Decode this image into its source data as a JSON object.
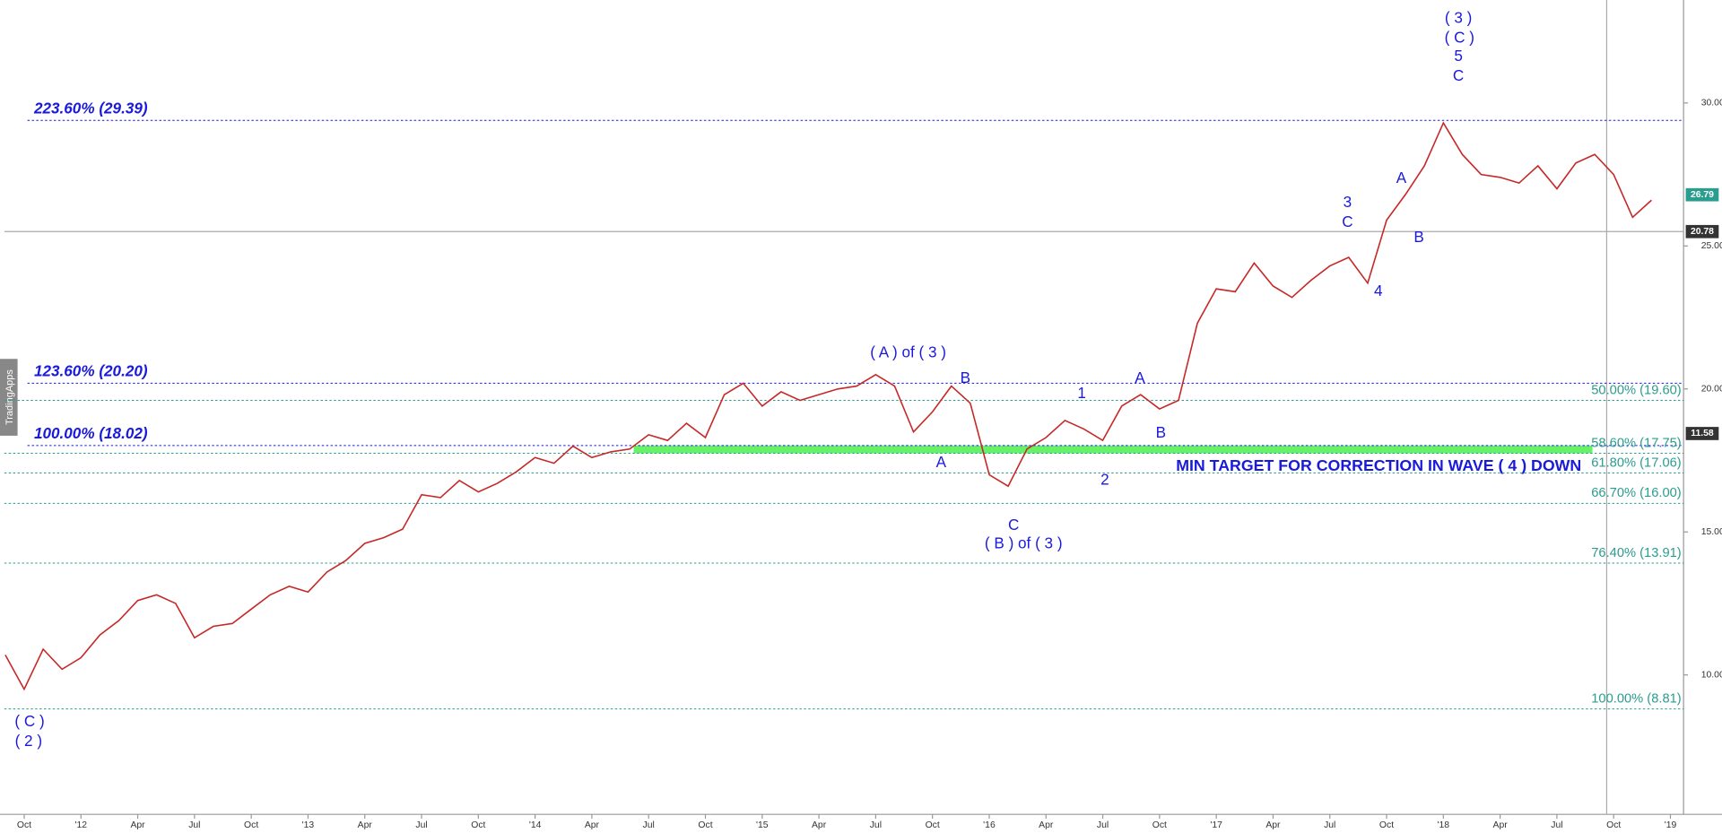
{
  "chart_data": {
    "type": "line",
    "side_tab": "TradingApps",
    "categories": [
      null,
      "Oct",
      null,
      null,
      "'12",
      null,
      null,
      "Apr",
      null,
      null,
      "Jul",
      null,
      null,
      "Oct",
      null,
      null,
      "'13",
      null,
      null,
      "Apr",
      null,
      null,
      "Jul",
      null,
      null,
      "Oct",
      null,
      null,
      "'14",
      null,
      null,
      "Apr",
      null,
      null,
      "Jul",
      null,
      null,
      "Oct",
      null,
      null,
      "'15",
      null,
      null,
      "Apr",
      null,
      null,
      "Jul",
      null,
      null,
      "Oct",
      null,
      null,
      "'16",
      null,
      null,
      "Apr",
      null,
      null,
      "Jul",
      null,
      null,
      "Oct",
      null,
      null,
      "'17",
      null,
      null,
      "Apr",
      null,
      null,
      "Jul",
      null,
      null,
      "Oct",
      null,
      null,
      "'18",
      null,
      null,
      "Apr",
      null,
      null,
      "Jul",
      null,
      null,
      "Oct",
      null,
      null,
      "'19"
    ],
    "series": [
      {
        "name": "Price",
        "color": "#c62828",
        "values": [
          10.7,
          9.5,
          10.9,
          10.2,
          10.6,
          11.4,
          11.9,
          12.6,
          12.8,
          12.5,
          11.3,
          11.7,
          11.8,
          12.3,
          12.8,
          13.1,
          12.9,
          13.6,
          14.0,
          14.6,
          14.8,
          15.1,
          16.3,
          16.2,
          16.8,
          16.4,
          16.7,
          17.1,
          17.6,
          17.4,
          18.0,
          17.6,
          17.8,
          17.9,
          18.4,
          18.2,
          18.8,
          18.3,
          19.8,
          20.2,
          19.4,
          19.9,
          19.6,
          19.8,
          20.0,
          20.1,
          20.5,
          20.1,
          18.5,
          19.2,
          20.1,
          19.5,
          17.0,
          16.6,
          17.9,
          18.3,
          18.9,
          18.6,
          18.2,
          19.4,
          19.8,
          19.3,
          19.6,
          22.3,
          23.5,
          23.4,
          24.4,
          23.6,
          23.2,
          23.8,
          24.3,
          24.6,
          23.7,
          25.9,
          26.8,
          27.8,
          29.3,
          28.2,
          27.5,
          27.4,
          27.2,
          27.8,
          27.0,
          27.9,
          28.2,
          27.5,
          26.0,
          26.6,
          null
        ]
      }
    ],
    "ylim": [
      5.125,
      33.6
    ],
    "yticks": [
      {
        "value": 10,
        "label": "10.00"
      },
      {
        "value": 15,
        "label": "15.00"
      },
      {
        "value": 20,
        "label": "20.00"
      },
      {
        "value": 25,
        "label": "25.00"
      },
      {
        "value": 30,
        "label": "30.00"
      }
    ],
    "last_price": 26.79,
    "cursor_readouts": [
      20.78,
      11.58
    ],
    "fib_extensions": [
      {
        "label": "223.60% (29.39)",
        "value": 29.39
      },
      {
        "label": "123.60% (20.20)",
        "value": 20.2
      },
      {
        "label": "100.00% (18.02)",
        "value": 18.02
      }
    ],
    "fib_retracements": [
      {
        "label": "50.00% (19.60)",
        "value": 19.6
      },
      {
        "label": "58.60% (17.75)",
        "value": 17.75
      },
      {
        "label": "61.80% (17.06)",
        "value": 17.06
      },
      {
        "label": "66.70% (16.00)",
        "value": 16.0
      },
      {
        "label": "76.40% (13.91)",
        "value": 13.91
      },
      {
        "label": "100.00% (8.81)",
        "value": 8.81
      }
    ],
    "extension_color": "#1a1adb",
    "retracement_color": "#2a9d8f",
    "target_zone_label": "MIN TARGET FOR CORRECTION IN WAVE ( 4 ) DOWN",
    "wave_labels": [
      "( 3 )",
      "( C )",
      "5",
      "C",
      "3",
      "C",
      "4",
      "A",
      "B",
      "( A ) of ( 3 )",
      "B",
      "A",
      "1",
      "A",
      "B",
      "2",
      "C",
      "( B ) of ( 3 )",
      "( C )",
      "( 2 )"
    ]
  }
}
